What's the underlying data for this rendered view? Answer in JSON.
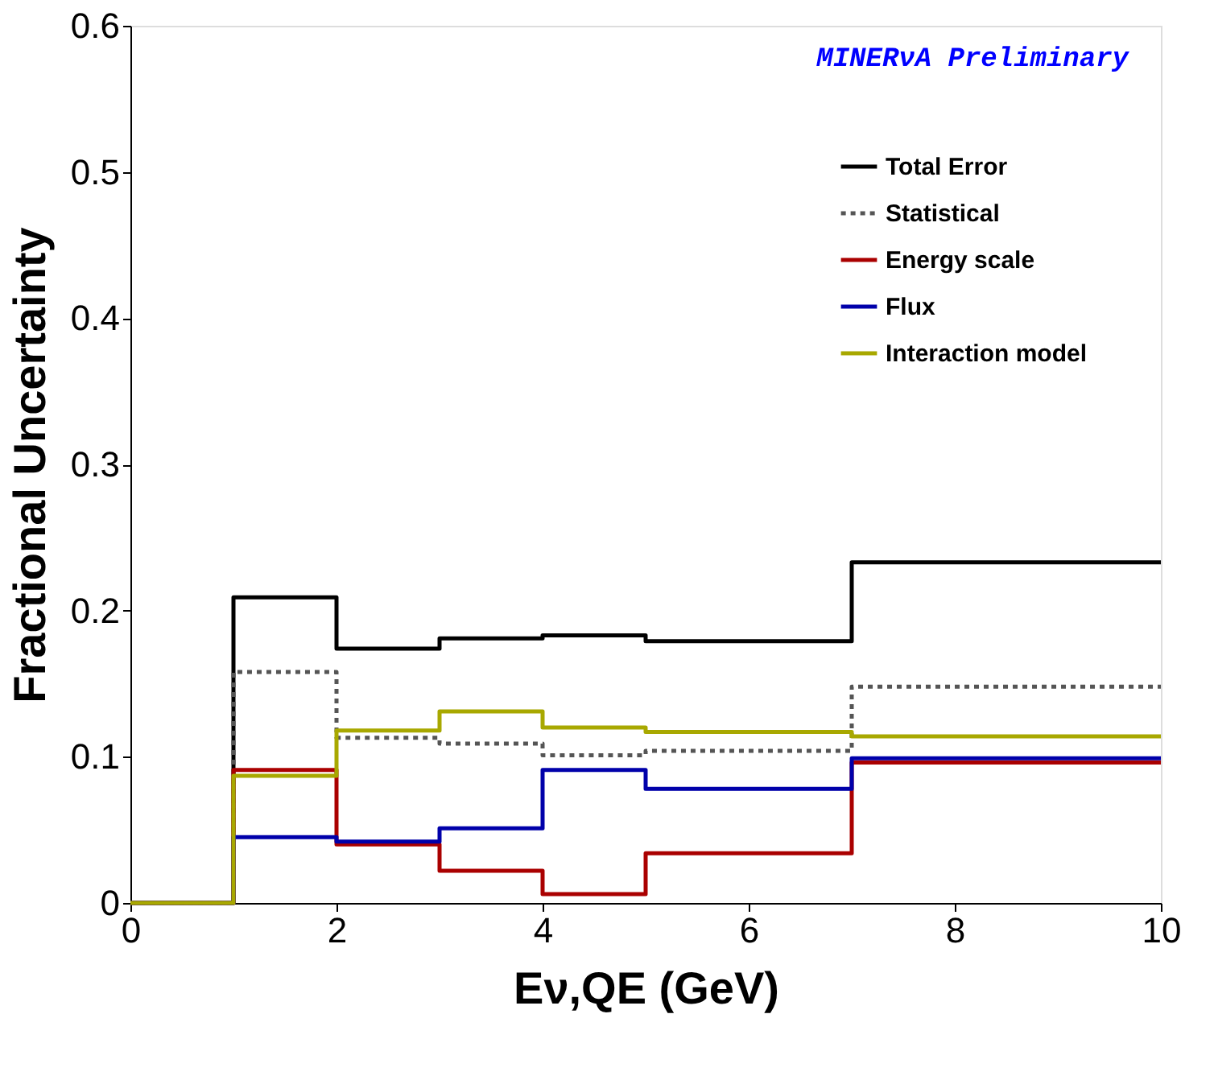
{
  "chart_data": {
    "type": "step",
    "xlabel": "Eν,QE (GeV)",
    "ylabel": "Fractional Uncertainty",
    "annotations": [
      "MINERνA Preliminary"
    ],
    "x": [
      0,
      1,
      2,
      3,
      4,
      5,
      7,
      10
    ],
    "xlim": [
      0,
      10
    ],
    "xticks": [
      0,
      2,
      4,
      6,
      8,
      10
    ],
    "ylim": [
      0,
      0.6
    ],
    "yticks": [
      0,
      0.1,
      0.2,
      0.3,
      0.4,
      0.5,
      0.6
    ],
    "grid": false,
    "legend": "top right",
    "series": [
      {
        "name": "Total Error",
        "color": "#000000",
        "line_style": "solid",
        "values": [
          0,
          0.209,
          0.174,
          0.181,
          0.183,
          0.179,
          0.233,
          0.233
        ]
      },
      {
        "name": "Statistical",
        "color": "#555555",
        "line_style": "dotted",
        "values": [
          0,
          0.158,
          0.113,
          0.109,
          0.101,
          0.104,
          0.148,
          0.148
        ]
      },
      {
        "name": "Energy scale",
        "color": "#aa0000",
        "line_style": "solid",
        "values": [
          0,
          0.091,
          0.04,
          0.022,
          0.006,
          0.034,
          0.096,
          0.096
        ]
      },
      {
        "name": "Flux",
        "color": "#0000aa",
        "line_style": "solid",
        "values": [
          0,
          0.045,
          0.042,
          0.051,
          0.091,
          0.078,
          0.099,
          0.099
        ]
      },
      {
        "name": "Interaction model",
        "color": "#a8a800",
        "line_style": "solid",
        "values": [
          0,
          0.087,
          0.118,
          0.131,
          0.12,
          0.117,
          0.114,
          0.114
        ]
      }
    ]
  }
}
